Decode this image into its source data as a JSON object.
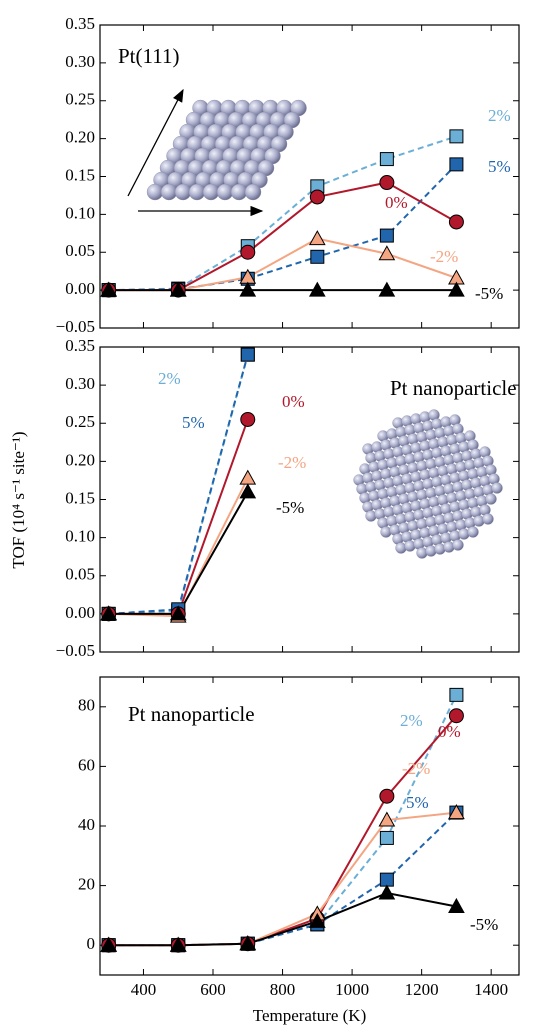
{
  "chart_data": [
    {
      "type": "line",
      "title": "Pt(111)",
      "x": [
        300,
        500,
        700,
        900,
        1100,
        1300
      ],
      "xlim": [
        275,
        1480
      ],
      "xticks": [
        400,
        600,
        800,
        1000,
        1200,
        1400
      ],
      "ylim": [
        -0.05,
        0.35
      ],
      "yticks": [
        {
          "value": -0.05,
          "label": "−0.05"
        },
        {
          "value": 0,
          "label": "0.00"
        },
        {
          "value": 0.05,
          "label": "0.05"
        },
        {
          "value": 0.1,
          "label": "0.10"
        },
        {
          "value": 0.15,
          "label": "0.15"
        },
        {
          "value": 0.2,
          "label": "0.20"
        },
        {
          "value": 0.25,
          "label": "0.25"
        },
        {
          "value": 0.3,
          "label": "0.30"
        },
        {
          "value": 0.35,
          "label": "0.35"
        }
      ],
      "series": [
        {
          "name": "2%",
          "color": "#6baed6",
          "marker": "square",
          "linestyle": "dashed",
          "values": [
            0,
            0.002,
            0.058,
            0.137,
            0.173,
            0.203
          ]
        },
        {
          "name": "5%",
          "color": "#2166ac",
          "marker": "square",
          "linestyle": "dashed",
          "values": [
            0,
            0.001,
            0.015,
            0.044,
            0.072,
            0.166
          ]
        },
        {
          "name": "0%",
          "color": "#b2182b",
          "marker": "circle",
          "linestyle": "solid",
          "values": [
            0,
            0,
            0.05,
            0.123,
            0.142,
            0.09
          ]
        },
        {
          "name": "-2%",
          "color": "#f4a582",
          "marker": "triangle",
          "linestyle": "solid",
          "values": [
            0,
            0,
            0.017,
            0.068,
            0.048,
            0.016
          ]
        },
        {
          "name": "-5%",
          "color": "#000000",
          "marker": "triangle",
          "linestyle": "solid",
          "values": [
            0,
            0,
            0,
            0,
            0,
            0
          ]
        }
      ]
    },
    {
      "type": "line",
      "title": "Pt nanoparticle",
      "x": [
        300,
        500,
        700
      ],
      "xlim": [
        275,
        1480
      ],
      "xticks": [
        400,
        600,
        800,
        1000,
        1200,
        1400
      ],
      "ylim": [
        -0.05,
        0.35
      ],
      "yticks": [
        {
          "value": -0.05,
          "label": "−0.05"
        },
        {
          "value": 0,
          "label": "0.00"
        },
        {
          "value": 0.05,
          "label": "0.05"
        },
        {
          "value": 0.1,
          "label": "0.10"
        },
        {
          "value": 0.15,
          "label": "0.15"
        },
        {
          "value": 0.2,
          "label": "0.20"
        },
        {
          "value": 0.25,
          "label": "0.25"
        },
        {
          "value": 0.3,
          "label": "0.30"
        },
        {
          "value": 0.35,
          "label": "0.35"
        }
      ],
      "series": [
        {
          "name": "2%",
          "color": "#6baed6",
          "marker": "square",
          "linestyle": "dashed",
          "values": [
            0,
            0.004,
            0.34
          ]
        },
        {
          "name": "5%",
          "color": "#2166ac",
          "marker": "square",
          "linestyle": "dashed",
          "values": [
            0,
            0.006,
            0.34
          ]
        },
        {
          "name": "0%",
          "color": "#b2182b",
          "marker": "circle",
          "linestyle": "solid",
          "values": [
            0,
            0,
            0.255
          ]
        },
        {
          "name": "-2%",
          "color": "#f4a582",
          "marker": "triangle",
          "linestyle": "solid",
          "values": [
            0,
            -0.003,
            0.178
          ]
        },
        {
          "name": "-5%",
          "color": "#000000",
          "marker": "triangle",
          "linestyle": "solid",
          "values": [
            0,
            0,
            0.16
          ]
        }
      ]
    },
    {
      "type": "line",
      "title": "Pt nanoparticle",
      "x": [
        300,
        500,
        700,
        900,
        1100,
        1300
      ],
      "xlim": [
        275,
        1480
      ],
      "xticks": [
        400,
        600,
        800,
        1000,
        1200,
        1400
      ],
      "xlabel": "Temperature (K)",
      "ylim": [
        -10,
        90
      ],
      "yticks": [
        0,
        20,
        40,
        60,
        80
      ],
      "series": [
        {
          "name": "2%",
          "color": "#6baed6",
          "marker": "square",
          "linestyle": "dashed",
          "values": [
            0,
            0,
            0.5,
            7,
            36,
            84
          ]
        },
        {
          "name": "5%",
          "color": "#2166ac",
          "marker": "square",
          "linestyle": "dashed",
          "values": [
            0,
            0,
            0.5,
            7,
            22,
            44.5
          ]
        },
        {
          "name": "0%",
          "color": "#b2182b",
          "marker": "circle",
          "linestyle": "solid",
          "values": [
            0,
            0,
            0.5,
            9,
            50,
            77
          ]
        },
        {
          "name": "-2%",
          "color": "#f4a582",
          "marker": "triangle",
          "linestyle": "solid",
          "values": [
            0,
            0,
            0.5,
            10.5,
            42,
            44.5
          ]
        },
        {
          "name": "-5%",
          "color": "#000000",
          "marker": "triangle",
          "linestyle": "solid",
          "values": [
            0,
            0,
            0.5,
            8,
            17.5,
            13
          ]
        }
      ]
    }
  ],
  "ylabel": "TOF (10⁴ s⁻¹ site⁻¹)"
}
